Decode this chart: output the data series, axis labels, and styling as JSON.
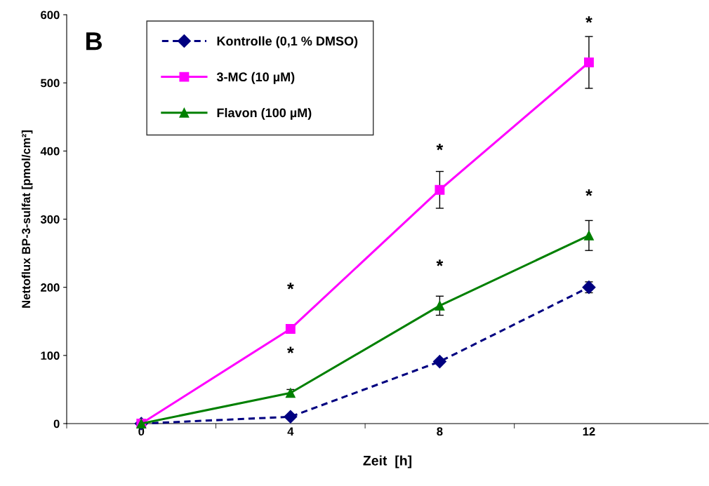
{
  "chart_data": {
    "type": "line",
    "xlabel": "Zeit  [h]",
    "ylabel": "Nettoflux BP-3-sulfat [pmol/cm²]",
    "categories": [
      "0",
      "4",
      "8",
      "12"
    ],
    "series": [
      {
        "name": "Kontrolle (0,1 % DMSO)",
        "color": "#000080",
        "values": [
          0,
          10,
          91,
          200
        ],
        "errors": [
          null,
          null,
          null,
          8
        ],
        "marker": "diamond",
        "line_style": "dashed"
      },
      {
        "name": "3-MC (10 µM)",
        "color": "#ff00ff",
        "values": [
          0,
          139,
          343,
          530
        ],
        "errors": [
          null,
          null,
          27,
          38
        ],
        "marker": "square",
        "line_style": "solid"
      },
      {
        "name": "Flavon (100 µM)",
        "color": "#008000",
        "values": [
          0,
          45,
          173,
          276
        ],
        "errors": [
          null,
          5,
          14,
          22
        ],
        "marker": "triangle",
        "line_style": "solid"
      }
    ],
    "ylim": [
      0,
      600
    ],
    "yticks": [
      0,
      100,
      200,
      300,
      400,
      500,
      600
    ],
    "grid": false,
    "legend": "top left",
    "annotations": [
      "B",
      {
        "text": "*",
        "x": "4",
        "y": 139
      },
      {
        "text": "*",
        "x": "4",
        "y": 45
      },
      {
        "text": "*",
        "x": "8",
        "y": 343
      },
      {
        "text": "*",
        "x": "8",
        "y": 173
      },
      {
        "text": "*",
        "x": "12",
        "y": 530
      },
      {
        "text": "*",
        "x": "12",
        "y": 276
      }
    ]
  }
}
